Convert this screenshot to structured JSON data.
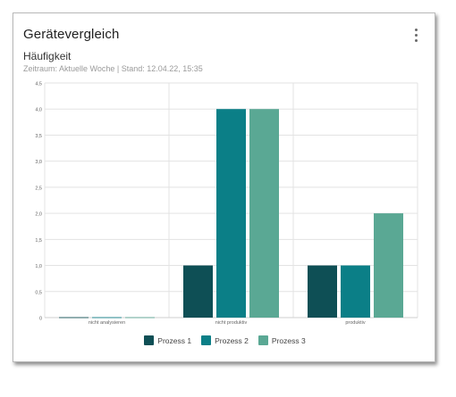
{
  "card": {
    "title": "Gerätevergleich",
    "subtitle": "Häufigkeit",
    "meta": "Zeitraum: Aktuelle Woche | Stand: 12.04.22, 15:35",
    "menu_icon": "more-vertical-icon"
  },
  "colors": {
    "series": [
      "#0e4f55",
      "#0b7f87",
      "#5aa894"
    ],
    "grid": "#e3e3e3",
    "axis_text": "#666666"
  },
  "chart_data": {
    "type": "bar",
    "categories": [
      "nicht analysieren",
      "nicht produktiv",
      "produktiv"
    ],
    "series": [
      {
        "name": "Prozess 1",
        "values": [
          0,
          1,
          1
        ]
      },
      {
        "name": "Prozess 2",
        "values": [
          0,
          4,
          1
        ]
      },
      {
        "name": "Prozess 3",
        "values": [
          0,
          4,
          2
        ]
      }
    ],
    "yticks": [
      "0",
      "0,5",
      "1,0",
      "1,5",
      "2,0",
      "2,5",
      "3,0",
      "3,5",
      "4,0",
      "4,5"
    ],
    "ylim": [
      0,
      4.5
    ],
    "grid": true,
    "legend_position": "bottom-center"
  }
}
